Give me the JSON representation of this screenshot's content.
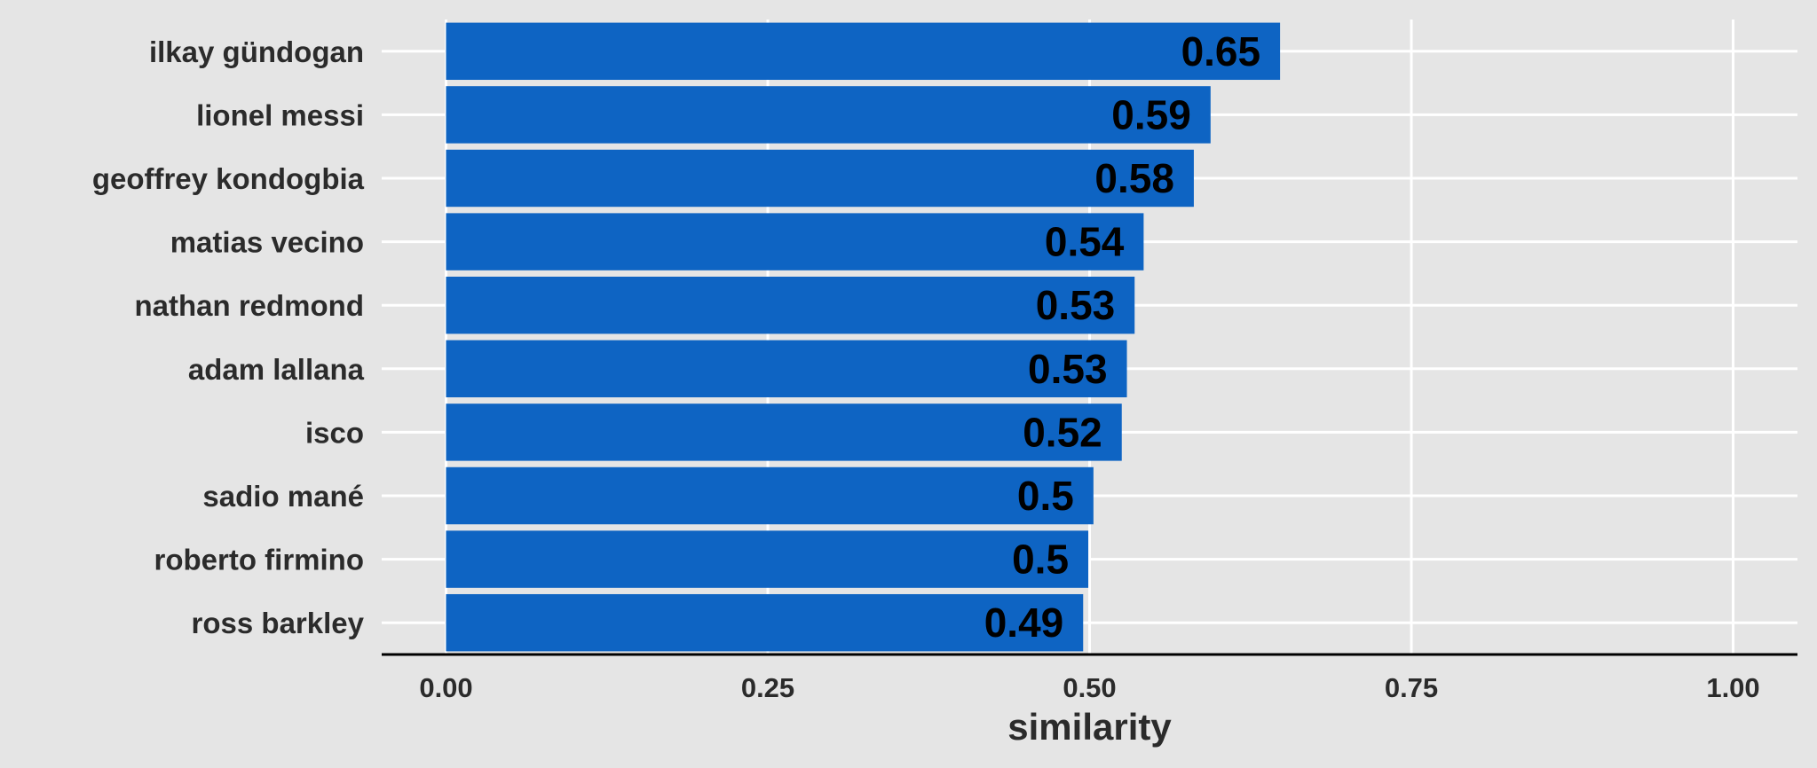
{
  "chart_data": {
    "type": "bar",
    "orientation": "horizontal",
    "categories": [
      "ilkay gündogan",
      "lionel messi",
      "geoffrey kondogbia",
      "matias vecino",
      "nathan redmond",
      "adam lallana",
      "isco",
      "sadio mané",
      "roberto firmino",
      "ross barkley"
    ],
    "values": [
      0.648,
      0.594,
      0.581,
      0.542,
      0.535,
      0.529,
      0.525,
      0.503,
      0.499,
      0.495
    ],
    "value_labels": [
      "0.65",
      "0.59",
      "0.58",
      "0.54",
      "0.53",
      "0.53",
      "0.52",
      "0.5",
      "0.5",
      "0.49"
    ],
    "xlabel": "similarity",
    "xlim": [
      -0.05,
      1.05
    ],
    "x_ticks": [
      0,
      0.25,
      0.5,
      0.75,
      1
    ],
    "x_tick_labels": [
      "0.00",
      "0.25",
      "0.50",
      "0.75",
      "1.00"
    ],
    "grid": true,
    "legend": "none",
    "colors": {
      "bar": "#0e64c3",
      "background": "#e5e5e5",
      "grid": "#ffffff",
      "axis": "#000000"
    }
  }
}
